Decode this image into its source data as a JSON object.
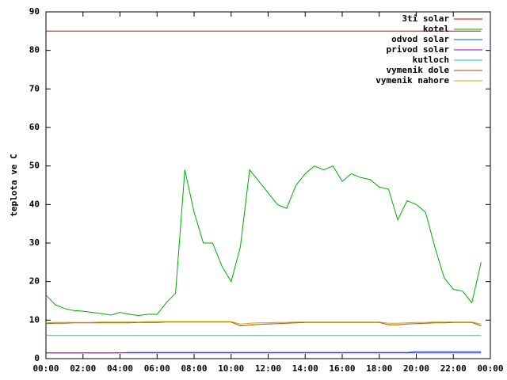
{
  "chart_data": {
    "type": "line",
    "ylabel": "teplota ve C",
    "xlim": [
      0,
      24
    ],
    "xticks": [
      {
        "value": 0,
        "label": "00:00"
      },
      {
        "value": 2,
        "label": "02:00"
      },
      {
        "value": 4,
        "label": "04:00"
      },
      {
        "value": 6,
        "label": "06:00"
      },
      {
        "value": 8,
        "label": "08:00"
      },
      {
        "value": 10,
        "label": "10:00"
      },
      {
        "value": 12,
        "label": "12:00"
      },
      {
        "value": 14,
        "label": "14:00"
      },
      {
        "value": 16,
        "label": "16:00"
      },
      {
        "value": 18,
        "label": "18:00"
      },
      {
        "value": 20,
        "label": "20:00"
      },
      {
        "value": 22,
        "label": "22:00"
      },
      {
        "value": 24,
        "label": "00:00"
      }
    ],
    "ylim": [
      0,
      90
    ],
    "yticks": [
      0,
      10,
      20,
      30,
      40,
      50,
      60,
      70,
      80,
      90
    ],
    "grid": false,
    "legend": "top-right",
    "x": [
      0,
      0.5,
      1,
      1.5,
      2,
      2.5,
      3,
      3.5,
      4,
      4.5,
      5,
      5.5,
      6,
      6.5,
      7,
      7.5,
      8,
      8.5,
      9,
      9.5,
      10,
      10.5,
      11,
      11.5,
      12,
      12.5,
      13,
      13.5,
      14,
      14.5,
      15,
      15.5,
      16,
      16.5,
      17,
      17.5,
      18,
      18.5,
      19,
      19.5,
      20,
      20.5,
      21,
      21.5,
      22,
      22.5,
      23,
      23.5
    ],
    "series": [
      {
        "name": "3ti solar",
        "color": "#cc0000",
        "values": [
          85,
          85,
          85,
          85,
          85,
          85,
          85,
          85,
          85,
          85,
          85,
          85,
          85,
          85,
          85,
          85,
          85,
          85,
          85,
          85,
          85,
          85,
          85,
          85,
          85,
          85,
          85,
          85,
          85,
          85,
          85,
          85,
          85,
          85,
          85,
          85,
          85,
          85,
          85,
          85,
          85,
          85,
          85,
          85,
          85,
          85,
          85,
          85
        ]
      },
      {
        "name": "kotel",
        "color": "#00aa00",
        "values": [
          16.5,
          14,
          13,
          12.5,
          12.3,
          12,
          11.7,
          11.3,
          12,
          11.5,
          11.2,
          11.5,
          11.5,
          14.5,
          17,
          49,
          38,
          30,
          30,
          24,
          20,
          29,
          49,
          46,
          43,
          40,
          39,
          45,
          48,
          50,
          49,
          50,
          46,
          48,
          47,
          46.5,
          44.5,
          44,
          36,
          41,
          40,
          38,
          29,
          21,
          18,
          17.5,
          14.5,
          25
        ]
      },
      {
        "name": "odvod solar",
        "color": "#0055dd",
        "values": [
          1.5,
          1.5,
          1.5,
          1.5,
          1.5,
          1.5,
          1.5,
          1.5,
          1.5,
          1.6,
          1.6,
          1.6,
          1.6,
          1.6,
          1.6,
          1.6,
          1.6,
          1.6,
          1.6,
          1.6,
          1.6,
          1.6,
          1.6,
          1.6,
          1.6,
          1.6,
          1.6,
          1.6,
          1.6,
          1.6,
          1.6,
          1.6,
          1.6,
          1.6,
          1.6,
          1.6,
          1.6,
          1.6,
          1.6,
          1.6,
          1.8,
          1.8,
          1.8,
          1.8,
          1.8,
          1.8,
          1.8,
          1.8
        ]
      },
      {
        "name": "privod solar",
        "color": "#bb00bb",
        "values": [
          1.5,
          1.5,
          1.5,
          1.5,
          1.5,
          1.5,
          1.5,
          1.5,
          1.5,
          1.5,
          1.5,
          1.5,
          1.5,
          1.5,
          1.5,
          1.5,
          1.5,
          1.5,
          1.5,
          1.5,
          1.5,
          1.5,
          1.5,
          1.5,
          1.5,
          1.5,
          1.5,
          1.5,
          1.5,
          1.5,
          1.5,
          1.5,
          1.5,
          1.5,
          1.5,
          1.5,
          1.5,
          1.5,
          1.5,
          1.5,
          1.5,
          1.5,
          1.5,
          1.5,
          1.5,
          1.5,
          1.5,
          1.5
        ]
      },
      {
        "name": "kutloch",
        "color": "#00ccbb",
        "values": [
          6,
          6,
          6,
          6,
          6,
          6,
          6,
          6,
          6,
          6,
          6,
          6,
          6,
          6,
          6,
          6,
          6,
          6,
          6,
          6,
          6,
          6,
          6,
          6,
          6,
          6,
          6,
          6,
          6,
          6,
          6,
          6,
          6,
          6,
          6,
          6,
          6,
          6,
          6,
          6,
          6,
          6,
          6,
          6,
          6,
          6,
          6,
          6
        ]
      },
      {
        "name": "vymenik dole",
        "color": "#a05000",
        "values": [
          9.1,
          9.2,
          9.2,
          9.3,
          9.3,
          9.3,
          9.3,
          9.3,
          9.3,
          9.3,
          9.4,
          9.4,
          9.4,
          9.5,
          9.5,
          9.5,
          9.5,
          9.5,
          9.5,
          9.5,
          9.5,
          8.5,
          8.7,
          8.9,
          9,
          9.1,
          9.2,
          9.3,
          9.4,
          9.4,
          9.4,
          9.4,
          9.4,
          9.4,
          9.4,
          9.4,
          9.4,
          8.8,
          8.8,
          9,
          9.1,
          9.2,
          9.3,
          9.3,
          9.4,
          9.4,
          9.4,
          8.5
        ]
      },
      {
        "name": "vymenik nahore",
        "color": "#ccaa00",
        "values": [
          9.3,
          9.4,
          9.4,
          9.4,
          9.4,
          9.4,
          9.5,
          9.5,
          9.5,
          9.5,
          9.5,
          9.6,
          9.6,
          9.6,
          9.6,
          9.6,
          9.6,
          9.6,
          9.6,
          9.6,
          9.6,
          9,
          9.2,
          9.3,
          9.3,
          9.4,
          9.4,
          9.5,
          9.5,
          9.5,
          9.5,
          9.5,
          9.5,
          9.5,
          9.5,
          9.5,
          9.5,
          9.2,
          9.2,
          9.3,
          9.4,
          9.4,
          9.5,
          9.5,
          9.5,
          9.5,
          9.5,
          9
        ]
      }
    ]
  }
}
